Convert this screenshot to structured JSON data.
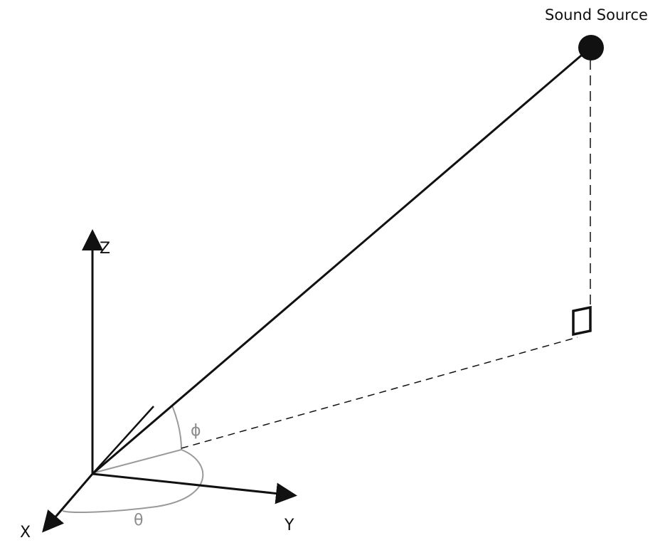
{
  "labels": {
    "source": "Sound Source",
    "x_axis": "X",
    "y_axis": "Y",
    "z_axis": "Z",
    "azimuth": "θ",
    "elevation": "ϕ"
  },
  "colors": {
    "line": "#111111",
    "angle": "#9a9a9a",
    "background": "#ffffff"
  }
}
